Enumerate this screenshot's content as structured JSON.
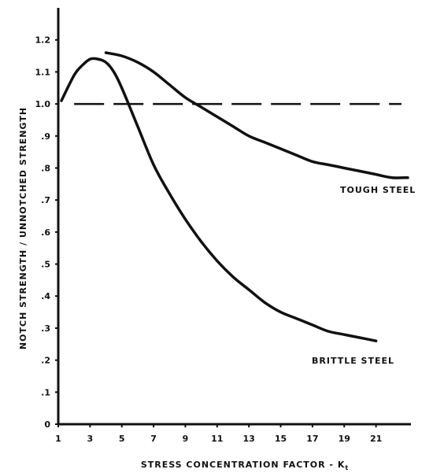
{
  "chart_data": {
    "type": "line",
    "xlabel": "STRESS CONCENTRATION FACTOR - K",
    "xlabel_subscript": "t",
    "ylabel": "NOTCH STRENGTH / UNNOTCHED STRENGTH",
    "xlim": [
      1,
      23.2
    ],
    "ylim": [
      0,
      1.3
    ],
    "x_ticks": [
      1,
      3,
      5,
      7,
      9,
      11,
      13,
      15,
      17,
      19,
      21
    ],
    "x_tick_labels": [
      "1",
      "3",
      "5",
      "7",
      "9",
      "11",
      "13",
      "15",
      "17",
      "19",
      "21"
    ],
    "y_ticks": [
      0,
      0.1,
      0.2,
      0.3,
      0.4,
      0.5,
      0.6,
      0.7,
      0.8,
      0.9,
      1.0,
      1.1,
      1.2
    ],
    "y_tick_labels": [
      "0",
      ".1",
      ".2",
      ".3",
      ".4",
      ".5",
      ".6",
      ".7",
      ".8",
      ".9",
      "1.0",
      "1.1",
      "1.2"
    ],
    "reference_line": {
      "y": 1.0,
      "style": "dashed"
    },
    "series": [
      {
        "name": "TOUGH STEEL",
        "x": [
          4,
          5,
          6,
          7,
          8,
          9,
          10,
          11,
          12,
          13,
          14,
          15,
          16,
          17,
          18,
          19,
          20,
          21,
          22,
          23
        ],
        "y": [
          1.16,
          1.15,
          1.13,
          1.1,
          1.06,
          1.02,
          0.99,
          0.96,
          0.93,
          0.9,
          0.88,
          0.86,
          0.84,
          0.82,
          0.81,
          0.8,
          0.79,
          0.78,
          0.77,
          0.77
        ]
      },
      {
        "name": "BRITTLE STEEL",
        "x": [
          1.2,
          2,
          2.5,
          3,
          3.5,
          4,
          4.5,
          5,
          6,
          7,
          8,
          9,
          10,
          11,
          12,
          13,
          14,
          15,
          16,
          17,
          18,
          19,
          20,
          21
        ],
        "y": [
          1.01,
          1.09,
          1.12,
          1.14,
          1.14,
          1.13,
          1.1,
          1.05,
          0.93,
          0.81,
          0.72,
          0.64,
          0.57,
          0.51,
          0.46,
          0.42,
          0.38,
          0.35,
          0.33,
          0.31,
          0.29,
          0.28,
          0.27,
          0.26
        ]
      }
    ]
  }
}
